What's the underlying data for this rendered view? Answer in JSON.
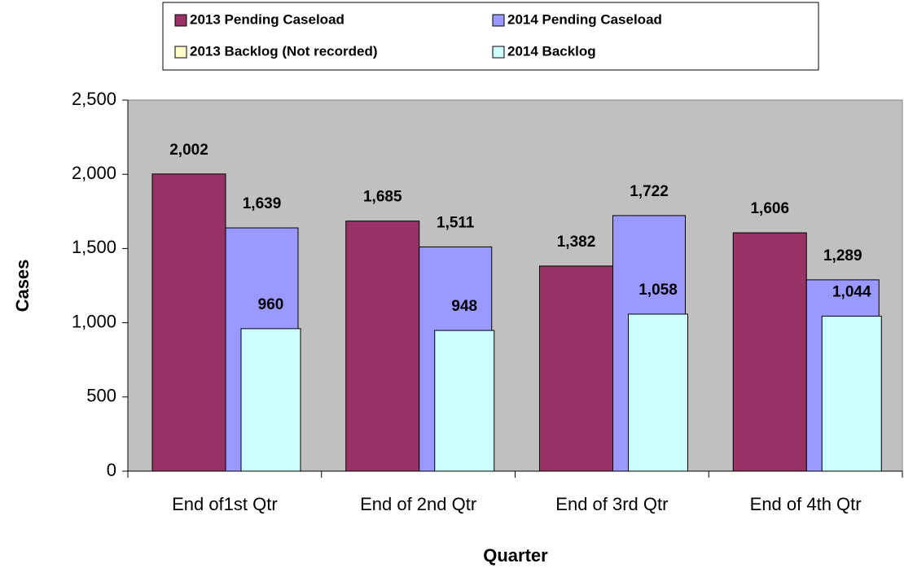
{
  "chart_data": {
    "type": "bar",
    "x_label": "Quarter",
    "y_label": "Cases",
    "categories": [
      "End of1st Qtr",
      "End of 2nd Qtr",
      "End of 3rd Qtr",
      "End of 4th Qtr"
    ],
    "series": [
      {
        "name": "2013 Pending Caseload",
        "color": "#993366",
        "values": [
          2002,
          1685,
          1382,
          1606
        ],
        "value_labels": [
          "2,002",
          "1,685",
          "1,382",
          "1,606"
        ]
      },
      {
        "name": "2014 Pending Caseload",
        "color": "#9999ff",
        "values": [
          1639,
          1511,
          1722,
          1289
        ],
        "value_labels": [
          "1,639",
          "1,511",
          "1,722",
          "1,289"
        ]
      },
      {
        "name": "2013 Backlog (Not recorded)",
        "color": "#ffffcc",
        "values": [
          null,
          null,
          null,
          null
        ]
      },
      {
        "name": "2014 Backlog",
        "color": "#ccffff",
        "values": [
          960,
          948,
          1058,
          1044
        ],
        "value_labels": [
          "960",
          "948",
          "1,058",
          "1,044"
        ]
      }
    ],
    "ylim": [
      0,
      2500
    ],
    "yticks": [
      0,
      500,
      {
        "value": 1000,
        "label": "1,000"
      },
      {
        "value": 1500,
        "label": "1,500"
      },
      {
        "value": 2000,
        "label": "2,000"
      },
      {
        "value": 2500,
        "label": "2,500"
      }
    ],
    "plot_background": "#c0c0c0",
    "legend": "top"
  }
}
